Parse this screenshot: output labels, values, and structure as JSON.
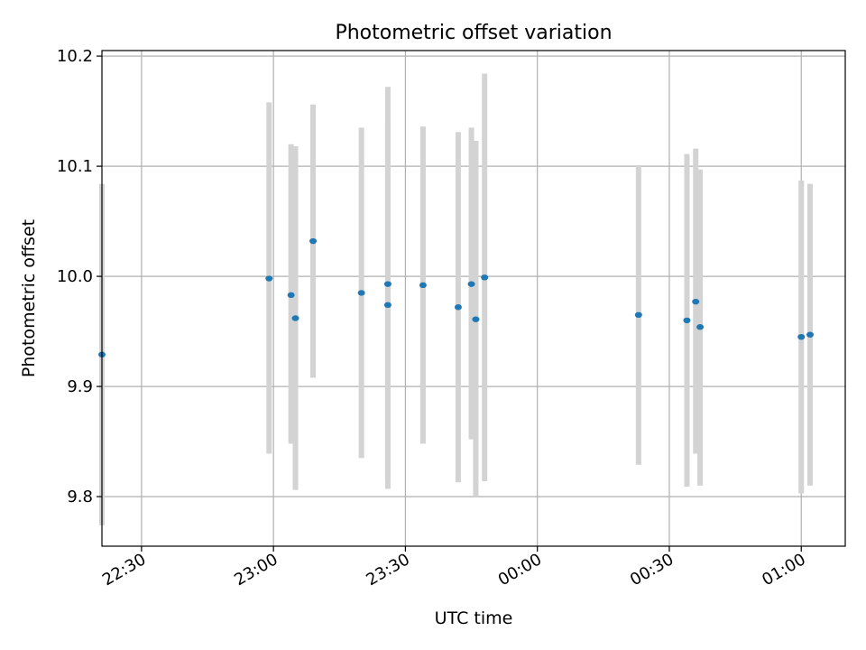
{
  "chart_data": {
    "type": "scatter",
    "title": "Photometric offset variation",
    "xlabel": "UTC time",
    "ylabel": "Photometric offset",
    "x_unit": "UTC clock time (HH:MM), spanning midnight",
    "xlim": [
      "22:21",
      "01:10"
    ],
    "ylim": [
      9.755,
      10.205
    ],
    "x_ticks": [
      "22:30",
      "23:00",
      "23:30",
      "00:00",
      "00:30",
      "01:00"
    ],
    "y_ticks": [
      9.8,
      9.9,
      10.0,
      10.1,
      10.2
    ],
    "y_tick_labels": [
      "9.8",
      "9.9",
      "10.0",
      "10.1",
      "10.2"
    ],
    "grid": true,
    "colors": {
      "point": "#1f77b4",
      "errorbar": "#d3d3d3",
      "grid": "#b0b0b0"
    },
    "points": [
      {
        "x": "22:21",
        "y": 9.929,
        "ylow": 9.774,
        "yhigh": 10.084
      },
      {
        "x": "22:59",
        "y": 9.998,
        "ylow": 9.839,
        "yhigh": 10.158
      },
      {
        "x": "23:04",
        "y": 9.983,
        "ylow": 9.848,
        "yhigh": 10.12
      },
      {
        "x": "23:05",
        "y": 9.962,
        "ylow": 9.806,
        "yhigh": 10.118
      },
      {
        "x": "23:09",
        "y": 10.032,
        "ylow": 9.908,
        "yhigh": 10.156
      },
      {
        "x": "23:20",
        "y": 9.985,
        "ylow": 9.835,
        "yhigh": 10.135
      },
      {
        "x": "23:26",
        "y": 9.993,
        "ylow": 9.815,
        "yhigh": 10.172
      },
      {
        "x": "23:26",
        "y": 9.974,
        "ylow": 9.807,
        "yhigh": 10.141
      },
      {
        "x": "23:34",
        "y": 9.992,
        "ylow": 9.848,
        "yhigh": 10.136
      },
      {
        "x": "23:42",
        "y": 9.972,
        "ylow": 9.813,
        "yhigh": 10.131
      },
      {
        "x": "23:45",
        "y": 9.993,
        "ylow": 9.852,
        "yhigh": 10.135
      },
      {
        "x": "23:46",
        "y": 9.961,
        "ylow": 9.8,
        "yhigh": 10.123
      },
      {
        "x": "23:48",
        "y": 9.999,
        "ylow": 9.814,
        "yhigh": 10.184
      },
      {
        "x": "00:23",
        "y": 9.965,
        "ylow": 9.829,
        "yhigh": 10.101
      },
      {
        "x": "00:34",
        "y": 9.96,
        "ylow": 9.809,
        "yhigh": 10.111
      },
      {
        "x": "00:36",
        "y": 9.977,
        "ylow": 9.839,
        "yhigh": 10.116
      },
      {
        "x": "00:37",
        "y": 9.954,
        "ylow": 9.81,
        "yhigh": 10.097
      },
      {
        "x": "01:00",
        "y": 9.945,
        "ylow": 9.803,
        "yhigh": 10.087
      },
      {
        "x": "01:02",
        "y": 9.947,
        "ylow": 9.81,
        "yhigh": 10.084
      }
    ]
  }
}
